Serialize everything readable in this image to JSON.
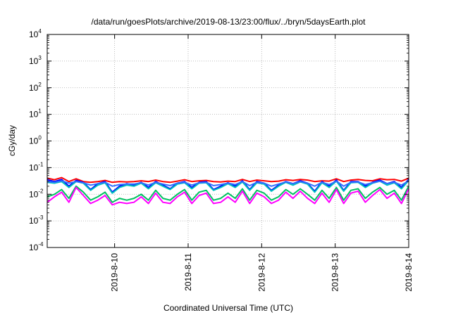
{
  "chart_data": {
    "type": "line",
    "title": "/data/run/goesPlots/archive/2019-08-13/23:00/flux/../bryn/5daysEarth.plot",
    "xlabel": "Coordinated Universal Time (UTC)",
    "ylabel": "cGy/day",
    "y_scale": "log",
    "ylim": [
      0.0001,
      10000
    ],
    "xlim": [
      "2019-08-09 02:00",
      "2019-08-14 00:00"
    ],
    "grid": true,
    "legend": "none",
    "y_ticks": [
      {
        "base": "10",
        "exp": "4",
        "value": 10000
      },
      {
        "base": "10",
        "exp": "3",
        "value": 1000
      },
      {
        "base": "10",
        "exp": "2",
        "value": 100
      },
      {
        "base": "10",
        "exp": "1",
        "value": 10
      },
      {
        "base": "10",
        "exp": "0",
        "value": 1
      },
      {
        "base": "10",
        "exp": "-1",
        "value": 0.1
      },
      {
        "base": "10",
        "exp": "-2",
        "value": 0.01
      },
      {
        "base": "10",
        "exp": "-3",
        "value": 0.001
      },
      {
        "base": "10",
        "exp": "-4",
        "value": 0.0001
      }
    ],
    "x_ticks": [
      "2019-8-10",
      "2019-8-11",
      "2019-8-12",
      "2019-8-13",
      "2019-8-14"
    ],
    "series": [
      {
        "color": "#ff0000",
        "values": [
          0.04,
          0.035,
          0.042,
          0.03,
          0.038,
          0.03,
          0.028,
          0.03,
          0.033,
          0.028,
          0.03,
          0.029,
          0.03,
          0.032,
          0.03,
          0.034,
          0.03,
          0.028,
          0.031,
          0.035,
          0.03,
          0.032,
          0.033,
          0.03,
          0.029,
          0.031,
          0.03,
          0.036,
          0.03,
          0.034,
          0.032,
          0.03,
          0.031,
          0.035,
          0.033,
          0.036,
          0.034,
          0.03,
          0.032,
          0.031,
          0.038,
          0.03,
          0.034,
          0.036,
          0.033,
          0.032,
          0.038,
          0.035,
          0.036,
          0.031,
          0.04
        ]
      },
      {
        "color": "#0000ff",
        "values": [
          0.035,
          0.03,
          0.036,
          0.02,
          0.033,
          0.028,
          0.015,
          0.025,
          0.03,
          0.012,
          0.02,
          0.025,
          0.022,
          0.028,
          0.018,
          0.03,
          0.022,
          0.016,
          0.026,
          0.03,
          0.018,
          0.028,
          0.03,
          0.015,
          0.02,
          0.027,
          0.02,
          0.032,
          0.015,
          0.03,
          0.026,
          0.014,
          0.022,
          0.03,
          0.025,
          0.032,
          0.026,
          0.013,
          0.03,
          0.02,
          0.034,
          0.014,
          0.03,
          0.03,
          0.02,
          0.028,
          0.034,
          0.025,
          0.03,
          0.018,
          0.036
        ]
      },
      {
        "color": "#00c0c0",
        "values": [
          0.028,
          0.026,
          0.03,
          0.018,
          0.03,
          0.026,
          0.014,
          0.022,
          0.027,
          0.011,
          0.018,
          0.022,
          0.02,
          0.026,
          0.016,
          0.027,
          0.02,
          0.015,
          0.024,
          0.027,
          0.016,
          0.026,
          0.027,
          0.014,
          0.018,
          0.025,
          0.018,
          0.029,
          0.014,
          0.027,
          0.024,
          0.013,
          0.02,
          0.028,
          0.022,
          0.029,
          0.024,
          0.012,
          0.027,
          0.018,
          0.031,
          0.013,
          0.027,
          0.028,
          0.018,
          0.026,
          0.031,
          0.022,
          0.027,
          0.016,
          0.033
        ]
      },
      {
        "color": "#00c060",
        "values": [
          0.008,
          0.01,
          0.015,
          0.007,
          0.02,
          0.012,
          0.006,
          0.008,
          0.012,
          0.005,
          0.007,
          0.006,
          0.007,
          0.01,
          0.006,
          0.014,
          0.007,
          0.006,
          0.01,
          0.015,
          0.006,
          0.012,
          0.014,
          0.006,
          0.007,
          0.011,
          0.007,
          0.016,
          0.006,
          0.014,
          0.011,
          0.006,
          0.008,
          0.015,
          0.01,
          0.016,
          0.01,
          0.006,
          0.014,
          0.007,
          0.018,
          0.006,
          0.014,
          0.016,
          0.007,
          0.012,
          0.018,
          0.01,
          0.014,
          0.006,
          0.02
        ]
      },
      {
        "color": "#ff00ff",
        "values": [
          0.005,
          0.008,
          0.012,
          0.005,
          0.018,
          0.009,
          0.0045,
          0.006,
          0.009,
          0.004,
          0.005,
          0.0045,
          0.005,
          0.008,
          0.0045,
          0.011,
          0.005,
          0.0045,
          0.008,
          0.012,
          0.0045,
          0.009,
          0.011,
          0.0045,
          0.005,
          0.008,
          0.005,
          0.013,
          0.0045,
          0.011,
          0.008,
          0.0045,
          0.006,
          0.012,
          0.007,
          0.013,
          0.007,
          0.0045,
          0.011,
          0.005,
          0.015,
          0.0045,
          0.011,
          0.013,
          0.005,
          0.009,
          0.015,
          0.007,
          0.011,
          0.0045,
          0.016
        ]
      },
      {
        "color": "#3070ff",
        "values": [
          0.03,
          0.028,
          0.032,
          0.026,
          0.03,
          0.027,
          0.022,
          0.025,
          0.028,
          0.02,
          0.023,
          0.024,
          0.024,
          0.027,
          0.022,
          0.028,
          0.024,
          0.021,
          0.026,
          0.028,
          0.022,
          0.027,
          0.028,
          0.021,
          0.023,
          0.026,
          0.023,
          0.03,
          0.021,
          0.028,
          0.026,
          0.02,
          0.024,
          0.029,
          0.025,
          0.03,
          0.026,
          0.02,
          0.028,
          0.023,
          0.031,
          0.02,
          0.028,
          0.029,
          0.023,
          0.027,
          0.031,
          0.025,
          0.028,
          0.022,
          0.032
        ]
      }
    ]
  }
}
